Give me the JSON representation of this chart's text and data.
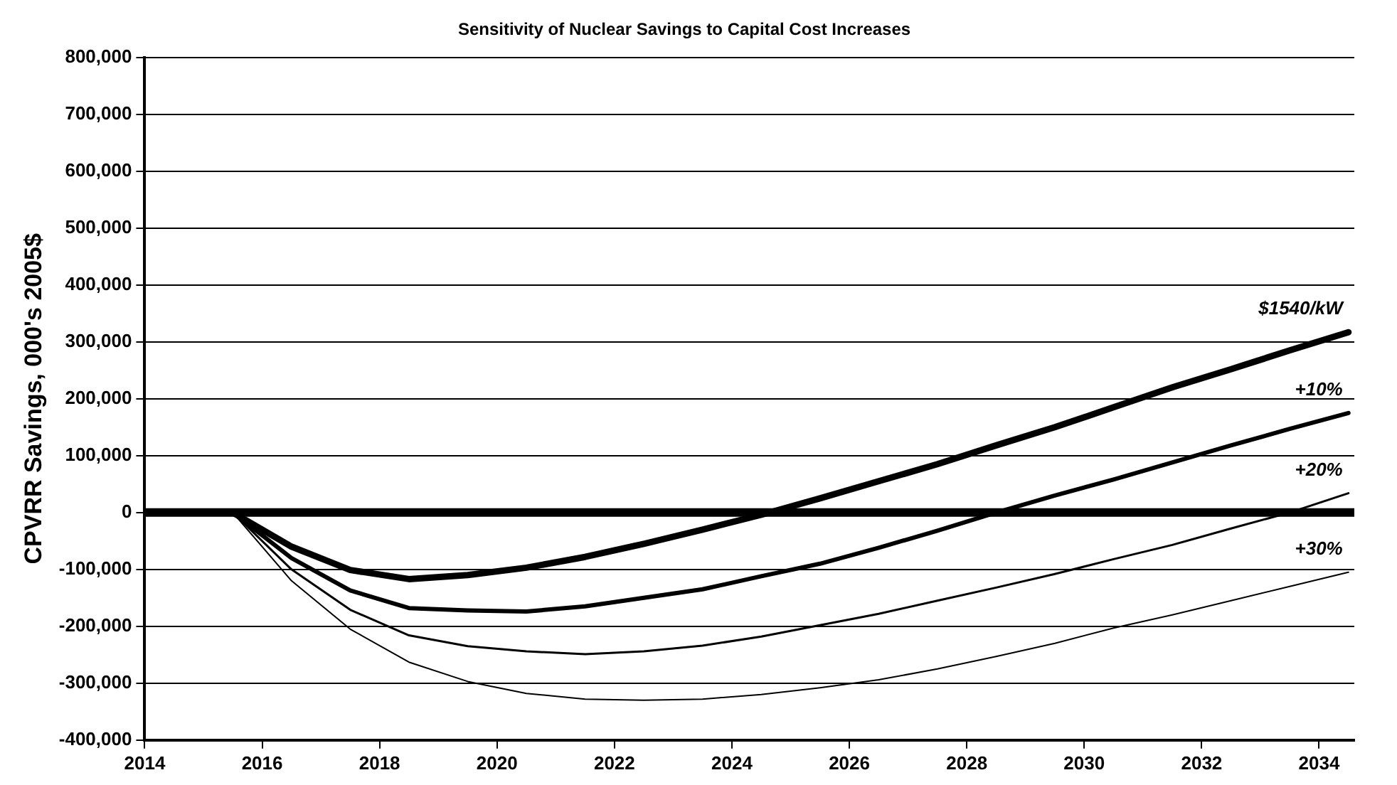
{
  "chart_data": {
    "type": "line",
    "title": "Sensitivity of Nuclear Savings to Capital Cost Increases",
    "ylabel": "CPVRR Savings, 000's 2005$",
    "x": [
      2014.5,
      2015.5,
      2016.5,
      2017.5,
      2018.5,
      2019.5,
      2020.5,
      2021.5,
      2022.5,
      2023.5,
      2024.5,
      2025.5,
      2026.5,
      2027.5,
      2028.5,
      2029.5,
      2030.5,
      2031.5,
      2032.5,
      2033.5,
      2034.5
    ],
    "series": [
      {
        "name": "$1540/kW",
        "color": "#000000",
        "values": [
          0,
          0,
          -60000,
          -101000,
          -117000,
          -110000,
          -97000,
          -78000,
          -55000,
          -30000,
          -4000,
          25000,
          55000,
          85000,
          118000,
          150000,
          185000,
          220000,
          252000,
          285000,
          317000
        ]
      },
      {
        "name": "+10%",
        "color": "#000000",
        "values": [
          0,
          0,
          -80000,
          -137000,
          -168000,
          -172000,
          -174000,
          -165000,
          -150000,
          -135000,
          -112000,
          -90000,
          -62000,
          -32000,
          0,
          30000,
          58000,
          88000,
          118000,
          147000,
          175000
        ]
      },
      {
        "name": "+20%",
        "color": "#000000",
        "values": [
          0,
          0,
          -100000,
          -171000,
          -216000,
          -235000,
          -244000,
          -249000,
          -244000,
          -234000,
          -218000,
          -198000,
          -178000,
          -155000,
          -132000,
          -108000,
          -82000,
          -57000,
          -28000,
          0,
          34000
        ]
      },
      {
        "name": "+30%",
        "color": "#000000",
        "values": [
          0,
          0,
          -120000,
          -205000,
          -263000,
          -297000,
          -318000,
          -328000,
          -330000,
          -328000,
          -320000,
          -308000,
          -294000,
          -275000,
          -253000,
          -230000,
          -203000,
          -180000,
          -155000,
          -130000,
          -105000
        ]
      }
    ],
    "xlim": [
      2014,
      2034.6
    ],
    "xticks": [
      2014,
      2016,
      2018,
      2020,
      2022,
      2024,
      2026,
      2028,
      2030,
      2032,
      2034
    ],
    "ylim": [
      -400000,
      800000
    ],
    "yticks": [
      {
        "value": -400000,
        "label": "-400,000"
      },
      {
        "value": -300000,
        "label": "-300,000"
      },
      {
        "value": -200000,
        "label": "-200,000"
      },
      {
        "value": -100000,
        "label": "-100,000"
      },
      0,
      {
        "value": 100000,
        "label": "100,000"
      },
      {
        "value": 200000,
        "label": "200,000"
      },
      {
        "value": 300000,
        "label": "300,000"
      },
      {
        "value": 400000,
        "label": "400,000"
      },
      {
        "value": 500000,
        "label": "500,000"
      },
      {
        "value": 600000,
        "label": "600,000"
      },
      {
        "value": 700000,
        "label": "700,000"
      },
      {
        "value": 800000,
        "label": "800,000"
      }
    ],
    "ref_lines": [
      {
        "axis": "y",
        "value": 0,
        "color": "#000000"
      }
    ],
    "grid": "y",
    "legend": false,
    "marker": "none",
    "line_style": "solid"
  }
}
